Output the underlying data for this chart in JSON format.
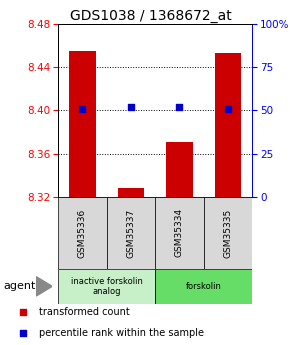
{
  "title": "GDS1038 / 1368672_at",
  "samples": [
    "GSM35336",
    "GSM35337",
    "GSM35334",
    "GSM35335"
  ],
  "bar_values": [
    8.455,
    8.328,
    8.371,
    8.453
  ],
  "percentile_values": [
    51,
    52,
    52,
    51
  ],
  "ymin": 8.32,
  "ymax": 8.48,
  "yticks": [
    8.32,
    8.36,
    8.4,
    8.44,
    8.48
  ],
  "right_yticks": [
    0,
    25,
    50,
    75,
    100
  ],
  "bar_color": "#cc0000",
  "percentile_color": "#0000cc",
  "bar_bottom": 8.32,
  "groups": [
    {
      "label": "inactive forskolin\nanalog",
      "samples": [
        0,
        1
      ],
      "color": "#c8f0c8"
    },
    {
      "label": "forskolin",
      "samples": [
        2,
        3
      ],
      "color": "#66dd66"
    }
  ],
  "legend_bar_label": "transformed count",
  "legend_pct_label": "percentile rank within the sample",
  "agent_label": "agent",
  "title_fontsize": 10,
  "tick_fontsize": 7.5,
  "sample_fontsize": 6.5,
  "legend_fontsize": 7,
  "agent_fontsize": 8
}
